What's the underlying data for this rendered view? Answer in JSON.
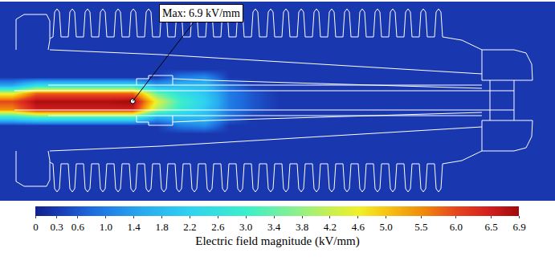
{
  "chart_data": {
    "type": "heatmap",
    "annotation": "Max: 6.9 kV/mm",
    "tick_labels": false,
    "colorbar_title": "Electric field magnitude (kV/mm)",
    "colorbar_range": [
      0,
      6.9
    ],
    "colorbar_ticks": [
      0,
      0.3,
      0.6,
      {
        "value": 1,
        "label": "1.0"
      },
      1.4,
      1.8,
      2.2,
      2.6,
      {
        "value": 3,
        "label": "3.0"
      },
      3.4,
      3.8,
      4.2,
      4.6,
      {
        "value": 5,
        "label": "5.0"
      },
      5.5,
      {
        "value": 6,
        "label": "6.0"
      },
      6.5,
      6.9
    ],
    "z": [
      [
        0.3,
        0.3,
        0.3,
        0.3,
        0.3,
        0.3,
        0.3,
        0.3,
        0.3,
        0.3,
        0.3,
        0.3,
        0.3,
        0.3,
        0.3,
        0.3,
        0.3,
        0.3,
        0.3,
        0.3,
        0.3,
        0.3,
        0.3
      ],
      [
        0.3,
        0.3,
        0.3,
        0.3,
        0.3,
        0.3,
        0.3,
        0.3,
        0.3,
        0.3,
        0.3,
        0.3,
        0.3,
        0.3,
        0.3,
        0.3,
        0.3,
        0.3,
        0.3,
        0.3,
        0.3,
        0.3,
        0.3
      ],
      [
        0.3,
        0.3,
        0.3,
        0.3,
        0.3,
        0.3,
        0.3,
        0.3,
        0.3,
        0.3,
        0.3,
        0.3,
        0.3,
        0.3,
        0.3,
        0.3,
        0.3,
        0.3,
        0.3,
        0.3,
        0.3,
        0.3,
        0.3
      ],
      [
        0.3,
        0.3,
        0.3,
        0.3,
        0.3,
        0.3,
        0.3,
        0.3,
        0.3,
        0.3,
        0.3,
        0.3,
        0.3,
        0.3,
        0.3,
        0.3,
        0.3,
        0.3,
        0.3,
        0.3,
        0.3,
        0.3,
        0.3
      ],
      [
        0.3,
        0.3,
        0.3,
        0.3,
        0.3,
        0.3,
        0.3,
        0.3,
        0.3,
        0.3,
        0.3,
        0.3,
        0.3,
        0.3,
        0.3,
        0.3,
        0.3,
        0.3,
        0.3,
        0.3,
        0.3,
        0.3,
        0.3
      ],
      [
        0.3,
        0.3,
        0.3,
        0.3,
        0.3,
        0.3,
        0.3,
        0.3,
        0.3,
        0.3,
        0.3,
        0.3,
        0.3,
        0.3,
        0.3,
        0.3,
        0.3,
        0.3,
        0.3,
        0.3,
        0.3,
        0.3,
        0.3
      ],
      [
        0.3,
        0.3,
        0.3,
        0.3,
        0.3,
        0.3,
        0.3,
        0.3,
        0.3,
        0.3,
        0.3,
        0.3,
        0.3,
        0.3,
        0.3,
        0.3,
        0.3,
        0.3,
        0.3,
        0.3,
        0.3,
        0.3,
        0.3
      ],
      [
        0.3,
        0.3,
        0.3,
        0.3,
        0.3,
        0.3,
        0.3,
        0.3,
        0.3,
        0.3,
        0.3,
        0.3,
        0.3,
        0.3,
        0.3,
        0.3,
        0.3,
        0.3,
        0.3,
        0.3,
        0.3,
        0.3,
        0.3
      ],
      [
        0.3,
        0.3,
        0.3,
        0.3,
        0.3,
        0.3,
        0.3,
        0.3,
        0.3,
        0.3,
        0.3,
        0.3,
        0.3,
        0.3,
        0.3,
        0.3,
        0.3,
        0.3,
        0.3,
        0.3,
        0.3,
        0.3,
        0.3
      ],
      [
        0.3,
        0.3,
        0.3,
        0.3,
        0.3,
        0.3,
        0.3,
        1.0,
        1.2,
        0.3,
        0.3,
        0.3,
        0.3,
        0.3,
        0.3,
        0.3,
        0.3,
        0.3,
        0.3,
        0.3,
        0.3,
        0.3,
        0.3
      ],
      [
        1.5,
        2.5,
        2.5,
        2.5,
        2.5,
        2.5,
        1.5,
        1.8,
        1.8,
        0.8,
        0.3,
        0.3,
        0.3,
        0.3,
        0.3,
        0.3,
        0.3,
        0.3,
        0.3,
        0.3,
        0.3,
        0.3,
        0.3
      ],
      [
        4.5,
        5.8,
        5.8,
        5.8,
        5.8,
        5.8,
        3.5,
        2.5,
        2.0,
        1.0,
        0.6,
        0.3,
        0.3,
        0.3,
        0.3,
        0.3,
        0.3,
        0.3,
        0.3,
        0.3,
        0.3,
        0.3,
        0.3
      ],
      [
        6.0,
        6.8,
        6.8,
        6.8,
        6.8,
        6.9,
        4.5,
        3.0,
        2.2,
        1.0,
        0.6,
        0.3,
        0.3,
        0.3,
        0.3,
        0.3,
        0.3,
        0.3,
        0.3,
        0.3,
        0.3,
        0.3,
        0.3
      ],
      [
        5.5,
        6.5,
        6.5,
        6.5,
        6.5,
        6.5,
        4.0,
        2.8,
        2.0,
        1.0,
        0.6,
        0.3,
        0.3,
        0.3,
        0.3,
        0.3,
        0.3,
        0.3,
        0.3,
        0.3,
        0.3,
        0.3,
        0.3
      ],
      [
        2.5,
        3.0,
        3.0,
        3.0,
        3.0,
        3.0,
        1.5,
        1.8,
        1.8,
        0.8,
        0.3,
        0.3,
        0.3,
        0.3,
        0.3,
        0.3,
        0.3,
        0.3,
        0.3,
        0.3,
        0.3,
        0.3,
        0.3
      ],
      [
        0.3,
        0.3,
        0.3,
        0.3,
        0.3,
        0.3,
        0.3,
        1.0,
        1.2,
        0.3,
        0.3,
        0.3,
        0.3,
        0.3,
        0.3,
        0.3,
        0.3,
        0.3,
        0.3,
        0.3,
        0.3,
        0.3,
        0.3
      ],
      [
        0.3,
        0.3,
        0.3,
        0.3,
        0.3,
        0.3,
        0.3,
        0.3,
        0.3,
        0.3,
        0.3,
        0.3,
        0.3,
        0.3,
        0.3,
        0.3,
        0.3,
        0.3,
        0.3,
        0.3,
        0.3,
        0.3,
        0.3
      ],
      [
        0.3,
        0.3,
        0.3,
        0.3,
        0.3,
        0.3,
        0.3,
        0.3,
        0.3,
        0.3,
        0.3,
        0.3,
        0.3,
        0.3,
        0.3,
        0.3,
        0.3,
        0.3,
        0.3,
        0.3,
        0.3,
        0.3,
        0.3
      ],
      [
        0.3,
        0.3,
        0.3,
        0.3,
        0.3,
        0.3,
        0.3,
        0.3,
        0.3,
        0.3,
        0.3,
        0.3,
        0.3,
        0.3,
        0.3,
        0.3,
        0.3,
        0.3,
        0.3,
        0.3,
        0.3,
        0.3,
        0.3
      ],
      [
        0.3,
        0.3,
        0.3,
        0.3,
        0.3,
        0.3,
        0.3,
        0.3,
        0.3,
        0.3,
        0.3,
        0.3,
        0.3,
        0.3,
        0.3,
        0.3,
        0.3,
        0.3,
        0.3,
        0.3,
        0.3,
        0.3,
        0.3
      ],
      [
        0.3,
        0.3,
        0.3,
        0.3,
        0.3,
        0.3,
        0.3,
        0.3,
        0.3,
        0.3,
        0.3,
        0.3,
        0.3,
        0.3,
        0.3,
        0.3,
        0.3,
        0.3,
        0.3,
        0.3,
        0.3,
        0.3,
        0.3
      ],
      [
        0.3,
        0.3,
        0.3,
        0.3,
        0.3,
        0.3,
        0.3,
        0.3,
        0.3,
        0.3,
        0.3,
        0.3,
        0.3,
        0.3,
        0.3,
        0.3,
        0.3,
        0.3,
        0.3,
        0.3,
        0.3,
        0.3,
        0.3
      ],
      [
        0.3,
        0.3,
        0.3,
        0.3,
        0.3,
        0.3,
        0.3,
        0.3,
        0.3,
        0.3,
        0.3,
        0.3,
        0.3,
        0.3,
        0.3,
        0.3,
        0.3,
        0.3,
        0.3,
        0.3,
        0.3,
        0.3,
        0.3
      ],
      [
        0.3,
        0.3,
        0.3,
        0.3,
        0.3,
        0.3,
        0.3,
        0.3,
        0.3,
        0.3,
        0.3,
        0.3,
        0.3,
        0.3,
        0.3,
        0.3,
        0.3,
        0.3,
        0.3,
        0.3,
        0.3,
        0.3,
        0.3
      ],
      [
        0.3,
        0.3,
        0.3,
        0.3,
        0.3,
        0.3,
        0.3,
        0.3,
        0.3,
        0.3,
        0.3,
        0.3,
        0.3,
        0.3,
        0.3,
        0.3,
        0.3,
        0.3,
        0.3,
        0.3,
        0.3,
        0.3,
        0.3
      ]
    ]
  }
}
